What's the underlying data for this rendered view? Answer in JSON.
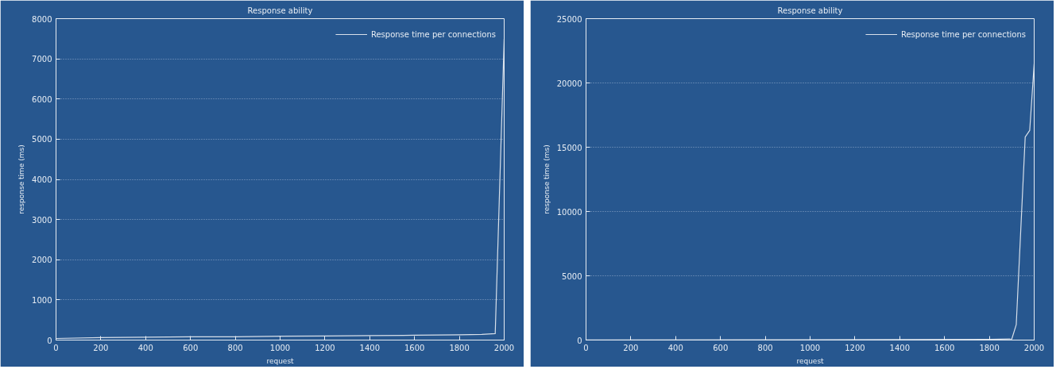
{
  "chart_data": [
    {
      "type": "line",
      "title": "Response ability",
      "xlabel": "request",
      "ylabel": "response time (ms)",
      "xlim": [
        0,
        2000
      ],
      "xticks": [
        0,
        200,
        400,
        600,
        800,
        1000,
        1200,
        1400,
        1600,
        1800,
        2000
      ],
      "ylim": [
        0,
        8000
      ],
      "yticks": [
        0,
        1000,
        2000,
        3000,
        4000,
        5000,
        6000,
        7000,
        8000
      ],
      "grid": "y",
      "legend": "top right",
      "line_style": "solid",
      "series": [
        {
          "name": "Response time per connections",
          "color": "#d8e0ea",
          "x": [
            0,
            200,
            400,
            600,
            800,
            1000,
            1200,
            1400,
            1600,
            1800,
            1900,
            1960,
            2000
          ],
          "values": [
            40,
            60,
            70,
            80,
            80,
            95,
            100,
            110,
            120,
            130,
            140,
            160,
            7500
          ]
        }
      ]
    },
    {
      "type": "line",
      "title": "Response ability",
      "xlabel": "request",
      "ylabel": "response time (ms)",
      "xlim": [
        0,
        2000
      ],
      "xticks": [
        0,
        200,
        400,
        600,
        800,
        1000,
        1200,
        1400,
        1600,
        1800,
        2000
      ],
      "ylim": [
        0,
        25000
      ],
      "yticks": [
        0,
        5000,
        10000,
        15000,
        20000,
        25000
      ],
      "grid": "y",
      "legend": "top right",
      "line_style": "solid",
      "series": [
        {
          "name": "Response time per connections",
          "color": "#d8e0ea",
          "x": [
            0,
            1000,
            1800,
            1900,
            1920,
            1960,
            1980,
            2000
          ],
          "values": [
            10,
            20,
            60,
            80,
            1200,
            15800,
            16300,
            21500
          ]
        }
      ]
    }
  ]
}
